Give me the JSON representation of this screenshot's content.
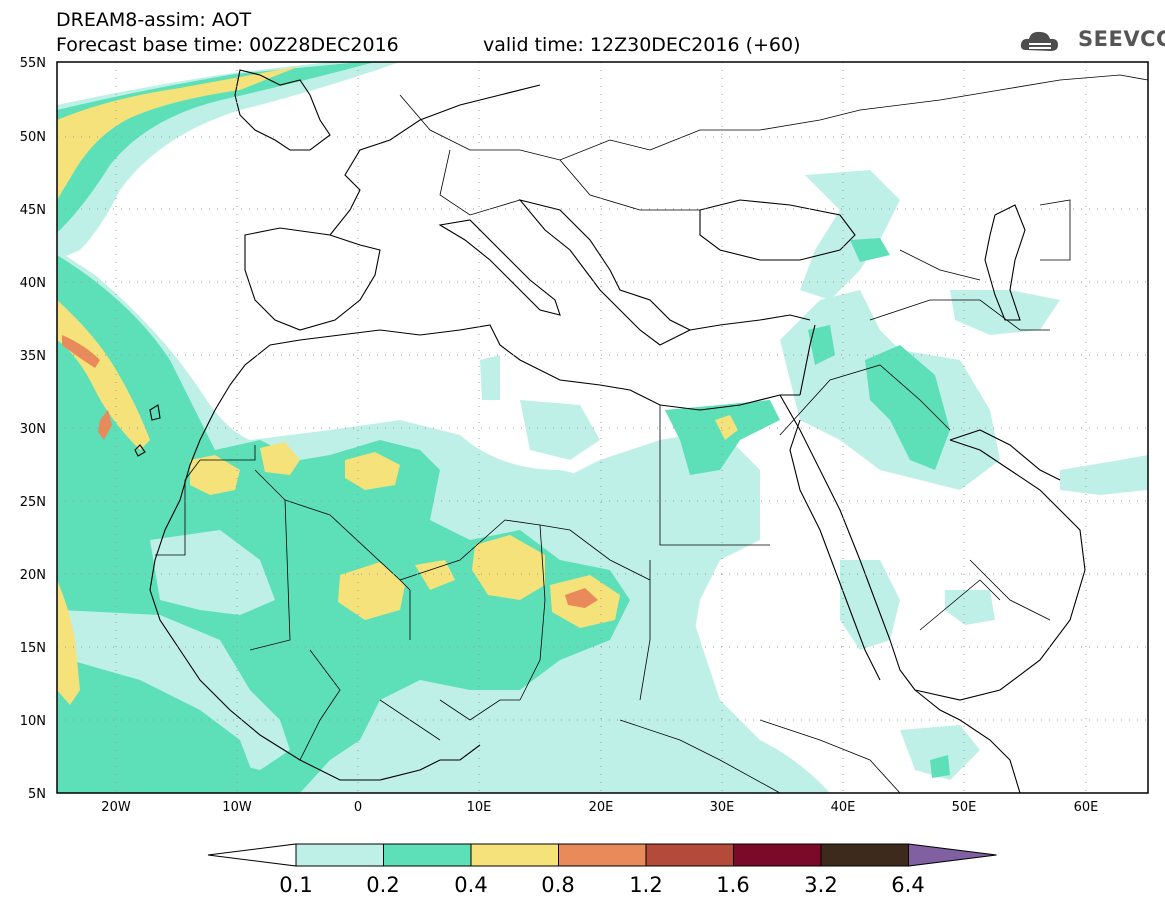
{
  "header": {
    "title": "DREAM8-assim: AOT",
    "base_time": "Forecast base time: 00Z28DEC2016",
    "valid_time": "valid time: 12Z30DEC2016 (+60)",
    "logo_text": "SEEVCCC"
  },
  "axes": {
    "lat_labels": [
      "55N",
      "50N",
      "45N",
      "40N",
      "35N",
      "30N",
      "25N",
      "20N",
      "15N",
      "10N",
      "5N"
    ],
    "lon_labels": [
      "20W",
      "10W",
      "0",
      "10E",
      "20E",
      "30E",
      "40E",
      "50E",
      "60E"
    ]
  },
  "colorbar": {
    "labels": [
      "0.1",
      "0.2",
      "0.4",
      "0.8",
      "1.2",
      "1.6",
      "3.2",
      "6.4"
    ],
    "colors": [
      "#ffffff",
      "#bff0e8",
      "#5de0b8",
      "#f5e27a",
      "#e88a5a",
      "#b34a3a",
      "#7a0a28",
      "#3d2a1c",
      "#8060a0"
    ]
  },
  "map": {
    "colors": {
      "very_light": "#bff0e8",
      "medium": "#5de0b8",
      "yellow": "#f5e27a",
      "orange": "#e88a5a"
    },
    "frame_color": "#000000"
  }
}
